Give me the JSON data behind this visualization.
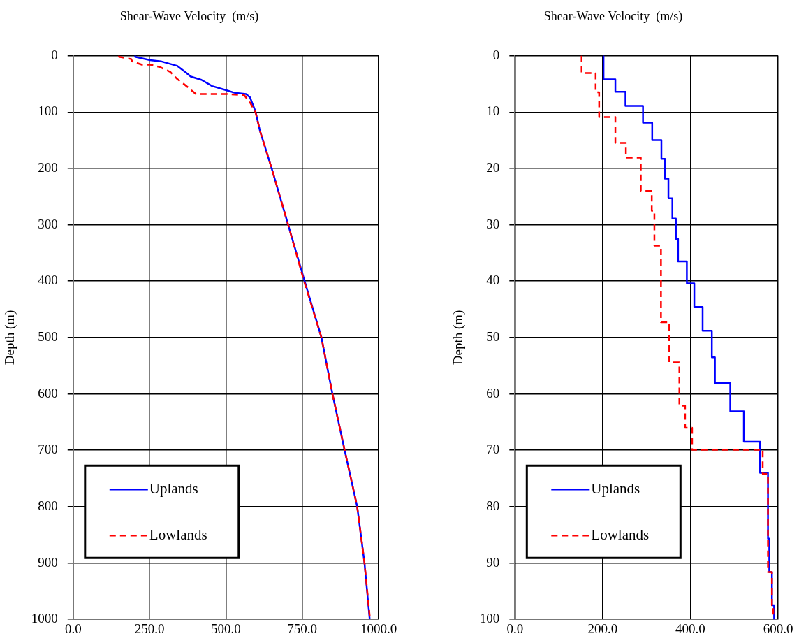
{
  "chart_data": [
    {
      "type": "line",
      "xlabel": "Shear-Wave Velocity  (m/s)",
      "ylabel": "Depth (m)",
      "xlim": [
        0,
        1000
      ],
      "xticks": [
        {
          "value": 0,
          "label": "0.0"
        },
        {
          "value": 250,
          "label": "250.0"
        },
        {
          "value": 500,
          "label": "500.0"
        },
        {
          "value": 750,
          "label": "750.0"
        },
        {
          "value": 1000,
          "label": "1000.0"
        }
      ],
      "ylim": [
        1000,
        0
      ],
      "yticks": [
        0,
        100,
        200,
        300,
        400,
        500,
        600,
        700,
        800,
        900,
        1000
      ],
      "grid": true,
      "legend": "bottom left",
      "series": [
        {
          "name": "Uplands",
          "color": "#0000ff",
          "line_style": "solid",
          "x": [
            203,
            203,
            252,
            287,
            340,
            367,
            385,
            420,
            455,
            499,
            530,
            566,
            579,
            597,
            612,
            650,
            704,
            758,
            813,
            849,
            889,
            930,
            954,
            971
          ],
          "values": [
            0,
            2,
            8,
            10,
            18,
            29,
            37,
            43,
            54,
            61,
            66,
            68,
            74,
            99,
            134,
            200,
            300,
            400,
            500,
            600,
            700,
            800,
            900,
            1000
          ]
        },
        {
          "name": "Lowlands",
          "color": "#ff0000",
          "line_style": "dashed",
          "x": [
            150,
            150,
            190,
            193,
            225,
            252,
            283,
            318,
            340,
            362,
            393,
            402,
            499,
            560,
            580,
            597,
            612,
            650,
            704,
            756,
            813,
            849,
            889,
            930,
            954,
            972
          ],
          "values": [
            0,
            2,
            6,
            10,
            16,
            16,
            20,
            29,
            41,
            50,
            64,
            68,
            68,
            70,
            84,
            100,
            134,
            200,
            300,
            400,
            500,
            600,
            700,
            800,
            900,
            1000
          ]
        }
      ]
    },
    {
      "type": "line",
      "xlabel": "Shear-Wave Velocity  (m/s)",
      "ylabel": "Depth (m)",
      "xlim": [
        0,
        600
      ],
      "xticks": [
        {
          "value": 0,
          "label": "0.0"
        },
        {
          "value": 200,
          "label": "200.0"
        },
        {
          "value": 400,
          "label": "400.0"
        },
        {
          "value": 600,
          "label": "600.0"
        }
      ],
      "ylim": [
        100,
        0
      ],
      "yticks": [
        0,
        10,
        20,
        30,
        40,
        50,
        60,
        70,
        80,
        90,
        100
      ],
      "grid": true,
      "legend": "bottom left",
      "series": [
        {
          "name": "Uplands",
          "color": "#0000ff",
          "line_style": "solid",
          "x": [
            202,
            202,
            229,
            229,
            252,
            252,
            292,
            292,
            313,
            313,
            334,
            334,
            342,
            342,
            350,
            350,
            359,
            359,
            367,
            367,
            372,
            372,
            392,
            392,
            409,
            409,
            428,
            428,
            449,
            449,
            456,
            456,
            491,
            491,
            522,
            522,
            559,
            559,
            577,
            577,
            580,
            580,
            586,
            586,
            591,
            591
          ],
          "values": [
            0,
            4.2,
            4.2,
            6.4,
            6.4,
            8.9,
            8.9,
            11.9,
            11.9,
            15,
            15,
            18.3,
            18.3,
            21.8,
            21.8,
            25.3,
            25.3,
            28.9,
            28.9,
            32.5,
            32.5,
            36.5,
            36.5,
            40.4,
            40.4,
            44.6,
            44.6,
            48.8,
            48.8,
            53.5,
            53.5,
            58.1,
            58.1,
            63.1,
            63.1,
            68.5,
            68.5,
            74,
            74,
            85.7,
            85.7,
            91.6,
            91.6,
            97.5,
            97.5,
            100
          ]
        },
        {
          "name": "Lowlands",
          "color": "#ff0000",
          "line_style": "dashed",
          "x": [
            152,
            152,
            184,
            184,
            192,
            192,
            229,
            229,
            253,
            253,
            287,
            287,
            312,
            312,
            318,
            318,
            333,
            333,
            352,
            352,
            375,
            375,
            388,
            388,
            404,
            404,
            565,
            565,
            577,
            577,
            586,
            586,
            589,
            589
          ],
          "values": [
            0,
            3.1,
            3.1,
            6.5,
            6.5,
            10.9,
            10.9,
            15.5,
            15.5,
            18.1,
            18.1,
            24,
            24,
            27.5,
            27.5,
            33.7,
            33.7,
            47.3,
            47.3,
            54.4,
            54.4,
            62.1,
            62.1,
            66,
            66,
            69.9,
            69.9,
            74.2,
            74.2,
            91.6,
            91.6,
            97.5,
            97.5,
            100
          ]
        }
      ]
    }
  ]
}
